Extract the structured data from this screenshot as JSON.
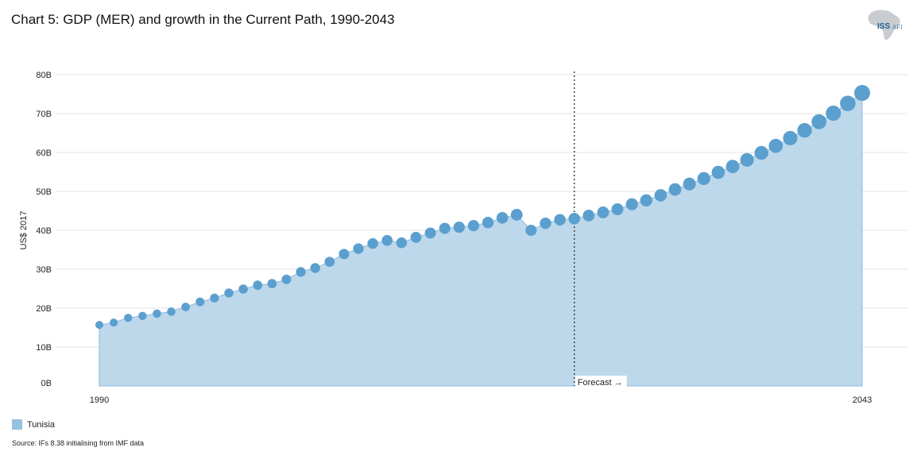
{
  "title": "Chart 5: GDP (MER) and growth in the Current Path, 1990-2043",
  "logo": {
    "text_iss": "ISS",
    "text_afi": "AFI"
  },
  "legend": {
    "label": "Tunisia"
  },
  "source": "Source: IFs 8.38 initialising from IMF data",
  "colors": {
    "area": "#bdd8eb",
    "area_stroke": "#8dbadd",
    "dot": "#5b9fcf",
    "grid": "#e3e3e3",
    "forecast_line": "#444444"
  },
  "chart_data": {
    "type": "area",
    "title": "Chart 5: GDP (MER) and growth in the Current Path, 1990-2043",
    "ylabel": "US$ 2017",
    "xlabel": "",
    "ylim": [
      0,
      80
    ],
    "yticks": [
      "0B",
      "10B",
      "20B",
      "30B",
      "40B",
      "50B",
      "60B",
      "70B",
      "80B"
    ],
    "xtick_labels": [
      "1990",
      "2043"
    ],
    "forecast_label": "Forecast →",
    "forecast_start_year": 2023,
    "grid": true,
    "legend_position": "bottom-left",
    "series": [
      {
        "name": "Tunisia",
        "years": [
          1990,
          1991,
          1992,
          1993,
          1994,
          1995,
          1996,
          1997,
          1998,
          1999,
          2000,
          2001,
          2002,
          2003,
          2004,
          2005,
          2006,
          2007,
          2008,
          2009,
          2010,
          2011,
          2012,
          2013,
          2014,
          2015,
          2016,
          2017,
          2018,
          2019,
          2020,
          2021,
          2022,
          2023,
          2024,
          2025,
          2026,
          2027,
          2028,
          2029,
          2030,
          2031,
          2032,
          2033,
          2034,
          2035,
          2036,
          2037,
          2038,
          2039,
          2040,
          2041,
          2042,
          2043
        ],
        "values": [
          15.7,
          16.3,
          17.5,
          18.0,
          18.6,
          19.1,
          20.3,
          21.6,
          22.6,
          23.9,
          24.9,
          25.9,
          26.3,
          27.4,
          29.3,
          30.3,
          31.9,
          33.9,
          35.3,
          36.6,
          37.4,
          36.8,
          38.2,
          39.3,
          40.5,
          40.8,
          41.2,
          42.0,
          43.2,
          44.0,
          40.0,
          41.8,
          42.7,
          43.0,
          43.8,
          44.6,
          45.4,
          46.7,
          47.7,
          49.0,
          50.5,
          51.9,
          53.3,
          54.9,
          56.4,
          58.1,
          59.9,
          61.7,
          63.7,
          65.7,
          67.9,
          70.1,
          72.6,
          75.3
        ]
      }
    ]
  }
}
